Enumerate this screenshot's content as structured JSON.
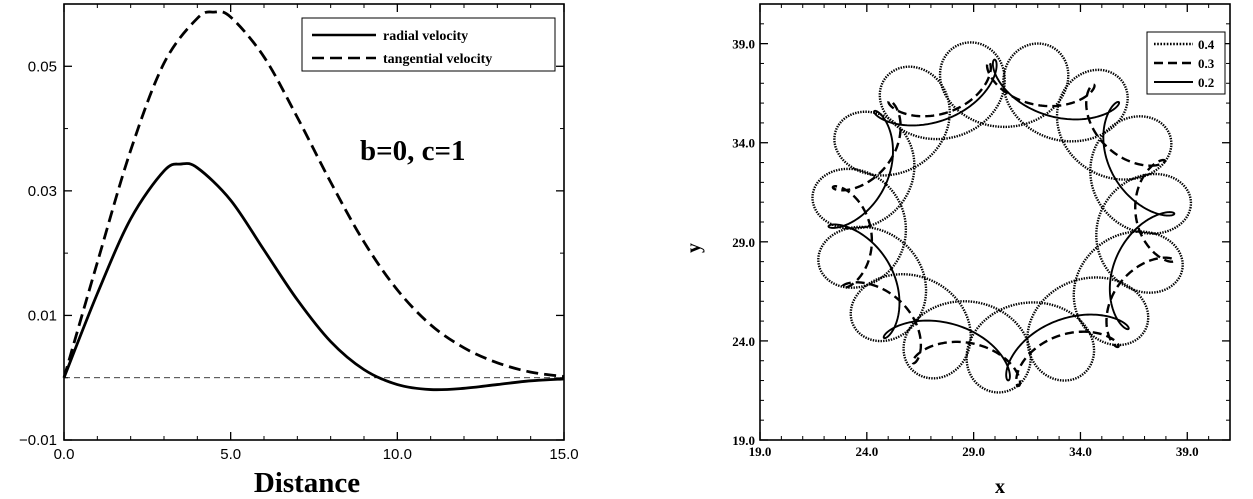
{
  "chart_data": [
    {
      "type": "line",
      "title": "",
      "annotation": "b=0, c=1",
      "xlabel": "Distance",
      "ylabel": "",
      "xlim": [
        0,
        15
      ],
      "ylim": [
        -0.01,
        0.06
      ],
      "xticks": [
        0,
        5,
        10,
        15
      ],
      "xtick_labels": [
        "0.0",
        "5.0",
        "10.0",
        "15.0"
      ],
      "yticks": [
        -0.01,
        0.01,
        0.03,
        0.05
      ],
      "ytick_labels": [
        "−0.01",
        "0.01",
        "0.03",
        "0.05"
      ],
      "legend_position": "top-right",
      "reference_line": {
        "y": 0,
        "style": "thin dashed"
      },
      "series": [
        {
          "name": "radial velocity",
          "style": "solid",
          "x": [
            0,
            1,
            2,
            3,
            3.5,
            4,
            5,
            6,
            7,
            8,
            9,
            10,
            11,
            12,
            13,
            14,
            15
          ],
          "y": [
            0,
            0.0135,
            0.0255,
            0.0332,
            0.0343,
            0.0337,
            0.0285,
            0.0205,
            0.0125,
            0.0058,
            0.0013,
            -0.0011,
            -0.0019,
            -0.0017,
            -0.0011,
            -0.0005,
            -0.0002
          ]
        },
        {
          "name": "tangential velocity",
          "style": "dashed",
          "x": [
            0,
            1,
            2,
            3,
            4,
            4.5,
            5,
            6,
            7,
            8,
            9,
            10,
            11,
            12,
            13,
            14,
            15
          ],
          "y": [
            0,
            0.0185,
            0.0365,
            0.0505,
            0.0577,
            0.0587,
            0.0579,
            0.0515,
            0.0418,
            0.0314,
            0.0218,
            0.0141,
            0.0085,
            0.0048,
            0.0024,
            0.0009,
            0.0002
          ]
        }
      ]
    },
    {
      "type": "line",
      "title": "",
      "xlabel": "x",
      "ylabel": "y",
      "xlim": [
        19,
        41
      ],
      "ylim": [
        19,
        41
      ],
      "xticks": [
        19,
        24,
        29,
        34,
        39
      ],
      "xtick_labels": [
        "19.0",
        "24.0",
        "29.0",
        "34.0",
        "39.0"
      ],
      "yticks": [
        19,
        24,
        29,
        34,
        39
      ],
      "ytick_labels": [
        "19.0",
        "24.0",
        "29.0",
        "34.0",
        "39.0"
      ],
      "legend_position": "top-right",
      "series": [
        {
          "name": "0.4",
          "style": "dotted",
          "center": [
            30.3,
            30.3
          ],
          "radius": 6.7,
          "lobes": 14,
          "loop_amplitude": 2.2,
          "phase": 0.1,
          "points": 1400
        },
        {
          "name": "0.3",
          "style": "dashed",
          "center": [
            30.4,
            29.9
          ],
          "radius": 7.2,
          "lobes": 9,
          "loop_amplitude": 1.0,
          "phase": 0.5,
          "points": 900
        },
        {
          "name": "0.2",
          "style": "solid",
          "center": [
            30.3,
            30.1
          ],
          "radius": 6.9,
          "lobes": 7,
          "loop_amplitude": 1.2,
          "phase": 1.1,
          "points": 900
        }
      ]
    }
  ]
}
